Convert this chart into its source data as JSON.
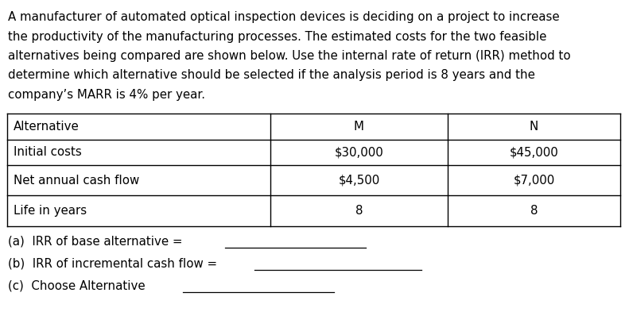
{
  "para_lines": [
    "A manufacturer of automated optical inspection devices is deciding on a project to increase",
    "the productivity of the manufacturing processes. The estimated costs for the two feasible",
    "alternatives being compared are shown below. Use the internal rate of return (IRR) method to",
    "determine which alternative should be selected if the analysis period is 8 years and the",
    "company’s MARR is 4% per year."
  ],
  "table_headers": [
    "Alternative",
    "M",
    "N"
  ],
  "table_rows": [
    [
      "Initial costs",
      "$30,000",
      "$45,000"
    ],
    [
      "Net annual cash flow",
      "$4,500",
      "$7,000"
    ],
    [
      "Life in years",
      "8",
      "8"
    ]
  ],
  "questions": [
    "(a)  IRR of base alternative =",
    "(b)  IRR of incremental cash flow =",
    "(c)  Choose Alternative"
  ],
  "bg_color": "#ffffff",
  "text_color": "#000000"
}
